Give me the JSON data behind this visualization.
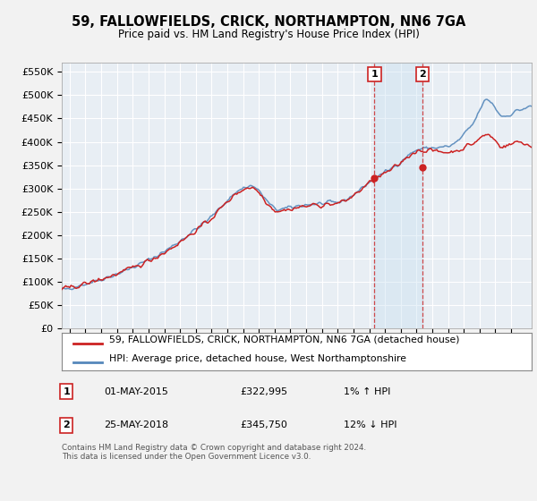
{
  "title": "59, FALLOWFIELDS, CRICK, NORTHAMPTON, NN6 7GA",
  "subtitle": "Price paid vs. HM Land Registry's House Price Index (HPI)",
  "ylabel_ticks": [
    "£0",
    "£50K",
    "£100K",
    "£150K",
    "£200K",
    "£250K",
    "£300K",
    "£350K",
    "£400K",
    "£450K",
    "£500K",
    "£550K"
  ],
  "ytick_values": [
    0,
    50000,
    100000,
    150000,
    200000,
    250000,
    300000,
    350000,
    400000,
    450000,
    500000,
    550000
  ],
  "ylim": [
    0,
    570000
  ],
  "xlim_start": 1995.5,
  "xlim_end": 2025.3,
  "sale1_x": 2015.33,
  "sale1_y": 322995,
  "sale2_x": 2018.38,
  "sale2_y": 345750,
  "legend_line1": "59, FALLOWFIELDS, CRICK, NORTHAMPTON, NN6 7GA (detached house)",
  "legend_line2": "HPI: Average price, detached house, West Northamptonshire",
  "footer": "Contains HM Land Registry data © Crown copyright and database right 2024.\nThis data is licensed under the Open Government Licence v3.0.",
  "hpi_color": "#5588bb",
  "price_color": "#cc2222",
  "bg_color": "#f2f2f2",
  "plot_bg": "#e8eef4",
  "shade_color": "#c8dff0",
  "vline_color": "#cc2222",
  "grid_color": "#ffffff",
  "title_fontsize": 10.5,
  "subtitle_fontsize": 8.5
}
